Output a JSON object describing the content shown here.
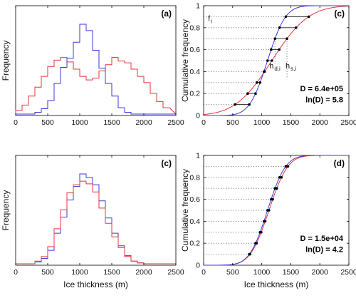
{
  "colors": {
    "red": "#e8333a",
    "blue": "#3a3ae0",
    "black": "#000000"
  },
  "chart_data": [
    {
      "panel": "(a)",
      "type": "bar",
      "style": "step-histogram",
      "ylabel": "Frequency",
      "xlim": [
        0,
        2500
      ],
      "xticks": [
        0,
        500,
        1000,
        1500,
        2000,
        2500
      ],
      "bin_edges": [
        0,
        100,
        200,
        300,
        400,
        500,
        600,
        700,
        800,
        900,
        1000,
        1100,
        1200,
        1300,
        1400,
        1500,
        1600,
        1700,
        1800,
        1900,
        2000,
        2100,
        2200,
        2300,
        2400
      ],
      "series": [
        {
          "color": "red",
          "values": [
            0.04,
            0.1,
            0.2,
            0.3,
            0.42,
            0.53,
            0.6,
            0.63,
            0.58,
            0.5,
            0.42,
            0.38,
            0.4,
            0.48,
            0.55,
            0.63,
            0.59,
            0.57,
            0.5,
            0.42,
            0.35,
            0.23,
            0.14,
            0.07
          ]
        },
        {
          "color": "blue",
          "values": [
            0.0,
            0.0,
            0.0,
            0.02,
            0.06,
            0.15,
            0.34,
            0.52,
            0.62,
            0.8,
            1.0,
            0.93,
            0.71,
            0.51,
            0.34,
            0.2,
            0.07,
            0.02,
            0.0,
            0.0,
            0.0,
            0.0,
            0.0,
            0.0
          ]
        }
      ]
    },
    {
      "panel": "(c)",
      "type": "line",
      "ylabel": "Cumulative frequency",
      "xlim": [
        0,
        2500
      ],
      "ylim": [
        0,
        1
      ],
      "xticks": [
        0,
        500,
        1000,
        1500,
        2000,
        2500
      ],
      "yticks": [
        0,
        0.2,
        0.4,
        0.6,
        0.8,
        1
      ],
      "series": [
        {
          "color": "red",
          "mean": 1175,
          "sd": 495
        },
        {
          "color": "blue",
          "mean": 1100,
          "sd": 245
        }
      ],
      "quantile_levels": [
        0.1,
        0.2,
        0.3,
        0.4,
        0.5,
        0.6,
        0.7,
        0.8,
        0.9
      ],
      "annotations": {
        "f": "f",
        "f_sub": "i",
        "hd": "h",
        "hd_sub": "d,i",
        "hs": "h",
        "hs_sub": "s,i"
      },
      "stats": [
        "D = 6.4e+05",
        "ln(D) = 5.8"
      ]
    },
    {
      "panel": "(c)",
      "type": "bar",
      "style": "step-histogram",
      "ylabel": "Frequency",
      "xlabel": "Ice thickness (m)",
      "xlim": [
        0,
        2500
      ],
      "xticks": [
        0,
        500,
        1000,
        1500,
        2000,
        2500
      ],
      "bin_edges": [
        0,
        100,
        200,
        300,
        400,
        500,
        600,
        700,
        800,
        900,
        1000,
        1100,
        1200,
        1300,
        1400,
        1500,
        1600,
        1700,
        1800,
        1900,
        2000,
        2100,
        2200,
        2300,
        2400
      ],
      "series": [
        {
          "color": "blue",
          "values": [
            0.0,
            0.0,
            0.0,
            0.02,
            0.06,
            0.15,
            0.34,
            0.52,
            0.71,
            0.86,
            1.0,
            0.96,
            0.88,
            0.7,
            0.51,
            0.34,
            0.2,
            0.09,
            0.03,
            0.01,
            0.0,
            0.0,
            0.0,
            0.0
          ]
        },
        {
          "color": "red",
          "values": [
            0.0,
            0.0,
            0.0,
            0.03,
            0.08,
            0.19,
            0.39,
            0.6,
            0.79,
            0.88,
            0.92,
            0.89,
            0.8,
            0.62,
            0.45,
            0.3,
            0.18,
            0.08,
            0.03,
            0.01,
            0.0,
            0.0,
            0.0,
            0.0
          ]
        }
      ]
    },
    {
      "panel": "(d)",
      "type": "line",
      "ylabel": "Cumulative frequency",
      "xlabel": "Ice thickness (m)",
      "xlim": [
        0,
        2500
      ],
      "ylim": [
        0,
        1
      ],
      "xticks": [
        0,
        500,
        1000,
        1500,
        2000,
        2500
      ],
      "yticks": [
        0,
        0.2,
        0.4,
        0.6,
        0.8,
        1
      ],
      "series": [
        {
          "color": "red",
          "mean": 1125,
          "sd": 255
        },
        {
          "color": "blue",
          "mean": 1100,
          "sd": 245
        }
      ],
      "quantile_levels": [
        0.1,
        0.2,
        0.3,
        0.4,
        0.5,
        0.6,
        0.7,
        0.8,
        0.9
      ],
      "stats": [
        "D = 1.5e+04",
        "ln(D) = 4.2"
      ]
    }
  ]
}
